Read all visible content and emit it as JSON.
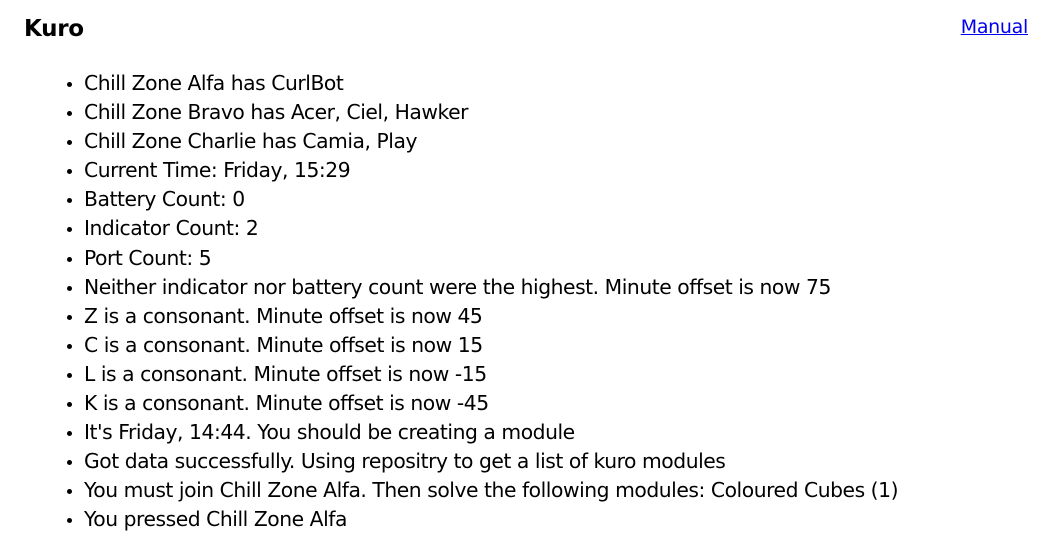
{
  "header": {
    "title": "Kuro",
    "manual_link": "Manual"
  },
  "log": [
    "Chill Zone Alfa has CurlBot",
    "Chill Zone Bravo has Acer, Ciel, Hawker",
    "Chill Zone Charlie has Camia, Play",
    "Current Time: Friday, 15:29",
    "Battery Count: 0",
    "Indicator Count: 2",
    "Port Count: 5",
    "Neither indicator nor battery count were the highest. Minute offset is now 75",
    "Z is a consonant. Minute offset is now 45",
    "C is a consonant. Minute offset is now 15",
    "L is a consonant. Minute offset is now -15",
    "K is a consonant. Minute offset is now -45",
    "It's Friday, 14:44. You should be creating a module",
    "Got data successfully. Using repositry to get a list of kuro modules",
    "You must join Chill Zone Alfa. Then solve the following modules: Coloured Cubes (1)",
    "You pressed Chill Zone Alfa"
  ]
}
